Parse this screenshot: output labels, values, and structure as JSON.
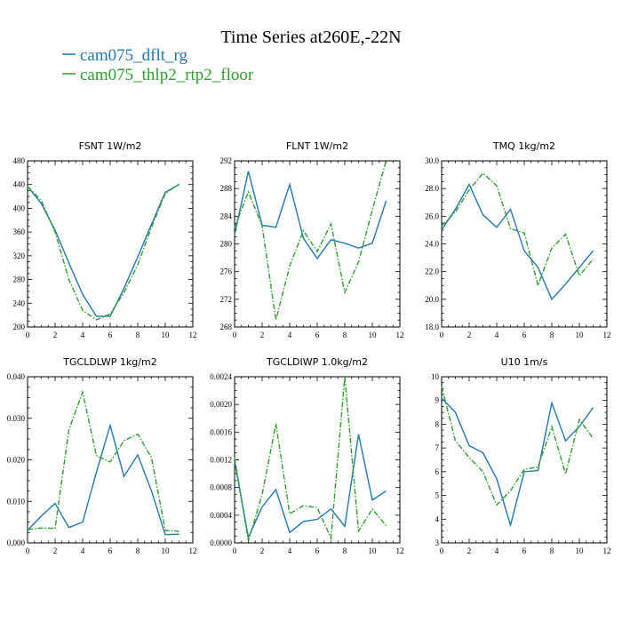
{
  "figure": {
    "title": "Time Series at260E,-22N",
    "legend": [
      {
        "label": "cam075_dflt_rg",
        "color": "#1f77b4",
        "dash": "solid"
      },
      {
        "label": "cam075_thlp2_rtp2_floor",
        "color": "#2ca02c",
        "dash": "dashdot"
      }
    ]
  },
  "chart_data": [
    {
      "type": "line",
      "title": "FSNT   1W/m2",
      "xlim": [
        0,
        12
      ],
      "ylim": [
        200,
        480
      ],
      "xticks": [
        "0",
        "2",
        "4",
        "6",
        "8",
        "10",
        "12"
      ],
      "yticks": [
        "200",
        "240",
        "280",
        "320",
        "360",
        "400",
        "440",
        "480"
      ],
      "x": [
        0,
        1,
        2,
        3,
        4,
        5,
        6,
        7,
        8,
        9,
        10,
        11
      ],
      "series": [
        {
          "name": "cam075_dflt_rg",
          "values": [
            437,
            408,
            363,
            308,
            255,
            218,
            218,
            265,
            318,
            373,
            427,
            440
          ]
        },
        {
          "name": "cam075_thlp2_rtp2_floor",
          "values": [
            437,
            413,
            360,
            280,
            228,
            212,
            222,
            258,
            305,
            368,
            425,
            441
          ]
        }
      ]
    },
    {
      "type": "line",
      "title": "FLNT   1W/m2",
      "xlim": [
        0,
        12
      ],
      "ylim": [
        268,
        292
      ],
      "xticks": [
        "0",
        "2",
        "4",
        "6",
        "8",
        "10",
        "12"
      ],
      "yticks": [
        "268",
        "272",
        "276",
        "280",
        "284",
        "288",
        "292"
      ],
      "x": [
        0,
        1,
        2,
        3,
        4,
        5,
        6,
        7,
        8,
        9,
        10,
        11
      ],
      "series": [
        {
          "name": "cam075_dflt_rg",
          "values": [
            281.3,
            290.5,
            282.7,
            282.4,
            288.6,
            280.8,
            277.9,
            280.6,
            280.1,
            279.4,
            280.1,
            286.2
          ]
        },
        {
          "name": "cam075_thlp2_rtp2_floor",
          "values": [
            282.4,
            287.5,
            282.6,
            269.0,
            276.8,
            281.9,
            278.9,
            282.9,
            273.0,
            277.4,
            284.9,
            292.0
          ]
        }
      ]
    },
    {
      "type": "line",
      "title": "TMQ   1kg/m2",
      "xlim": [
        0,
        12
      ],
      "ylim": [
        18.0,
        30.0
      ],
      "xticks": [
        "0",
        "2",
        "4",
        "6",
        "8",
        "10",
        "12"
      ],
      "yticks": [
        "18.0",
        "20.0",
        "22.0",
        "24.0",
        "26.0",
        "28.0",
        "30.0"
      ],
      "x": [
        0,
        1,
        2,
        3,
        4,
        5,
        6,
        7,
        8,
        9,
        10,
        11
      ],
      "series": [
        {
          "name": "cam075_dflt_rg",
          "values": [
            25.0,
            26.5,
            28.3,
            26.1,
            25.2,
            26.5,
            23.5,
            22.3,
            20.0,
            21.1,
            22.3,
            23.5
          ]
        },
        {
          "name": "cam075_thlp2_rtp2_floor",
          "values": [
            25.3,
            26.3,
            27.9,
            29.1,
            28.2,
            25.1,
            24.8,
            21.0,
            23.7,
            24.7,
            21.7,
            22.9
          ]
        }
      ]
    },
    {
      "type": "line",
      "title": "TGCLDLWP   1kg/m2",
      "xlim": [
        0,
        12
      ],
      "ylim": [
        0.0,
        0.04
      ],
      "xticks": [
        "0",
        "2",
        "4",
        "6",
        "8",
        "10",
        "12"
      ],
      "yticks": [
        "0.000",
        "0.010",
        "0.020",
        "0.030",
        "0.040"
      ],
      "x": [
        0,
        1,
        2,
        3,
        4,
        5,
        6,
        7,
        8,
        9,
        10,
        11
      ],
      "series": [
        {
          "name": "cam075_dflt_rg",
          "values": [
            0.003,
            0.0065,
            0.0095,
            0.0037,
            0.005,
            0.017,
            0.0283,
            0.016,
            0.0212,
            0.0125,
            0.002,
            0.0021
          ]
        },
        {
          "name": "cam075_thlp2_rtp2_floor",
          "values": [
            0.0032,
            0.0036,
            0.0035,
            0.0272,
            0.0363,
            0.021,
            0.0195,
            0.0246,
            0.0262,
            0.0205,
            0.003,
            0.0028
          ]
        }
      ]
    },
    {
      "type": "line",
      "title": "TGCLDIWP   1.0kg/m2",
      "xlim": [
        0,
        12
      ],
      "ylim": [
        0.0,
        0.0024
      ],
      "xticks": [
        "0",
        "2",
        "4",
        "6",
        "8",
        "10",
        "12"
      ],
      "yticks": [
        "0.0000",
        "0.0004",
        "0.0008",
        "0.0012",
        "0.0016",
        "0.0020",
        "0.0024"
      ],
      "x": [
        0,
        1,
        2,
        3,
        4,
        5,
        6,
        7,
        8,
        9,
        10,
        11
      ],
      "series": [
        {
          "name": "cam075_dflt_rg",
          "values": [
            0.00118,
            8e-05,
            0.00052,
            0.00077,
            0.00015,
            0.00031,
            0.00034,
            0.00049,
            0.00024,
            0.00157,
            0.00062,
            0.00075
          ]
        },
        {
          "name": "cam075_thlp2_rtp2_floor",
          "values": [
            0.00123,
            3e-05,
            0.0007,
            0.00172,
            0.00042,
            0.00054,
            0.00051,
            7e-05,
            0.0024,
            0.00017,
            0.00049,
            0.00025
          ]
        }
      ]
    },
    {
      "type": "line",
      "title": "U10   1m/s",
      "xlim": [
        0,
        12
      ],
      "ylim": [
        3,
        10
      ],
      "xticks": [
        "0",
        "2",
        "4",
        "6",
        "8",
        "10",
        "12"
      ],
      "yticks": [
        "3",
        "4",
        "5",
        "6",
        "7",
        "8",
        "9",
        "10"
      ],
      "x": [
        0,
        1,
        2,
        3,
        4,
        5,
        6,
        7,
        8,
        9,
        10,
        11
      ],
      "series": [
        {
          "name": "cam075_dflt_rg",
          "values": [
            9.1,
            8.5,
            7.1,
            6.8,
            5.7,
            3.75,
            6.0,
            6.05,
            8.9,
            7.3,
            7.9,
            8.7
          ]
        },
        {
          "name": "cam075_thlp2_rtp2_floor",
          "values": [
            9.6,
            7.3,
            6.6,
            6.0,
            4.6,
            5.2,
            6.1,
            6.2,
            7.9,
            5.9,
            8.2,
            7.4
          ]
        }
      ]
    }
  ]
}
